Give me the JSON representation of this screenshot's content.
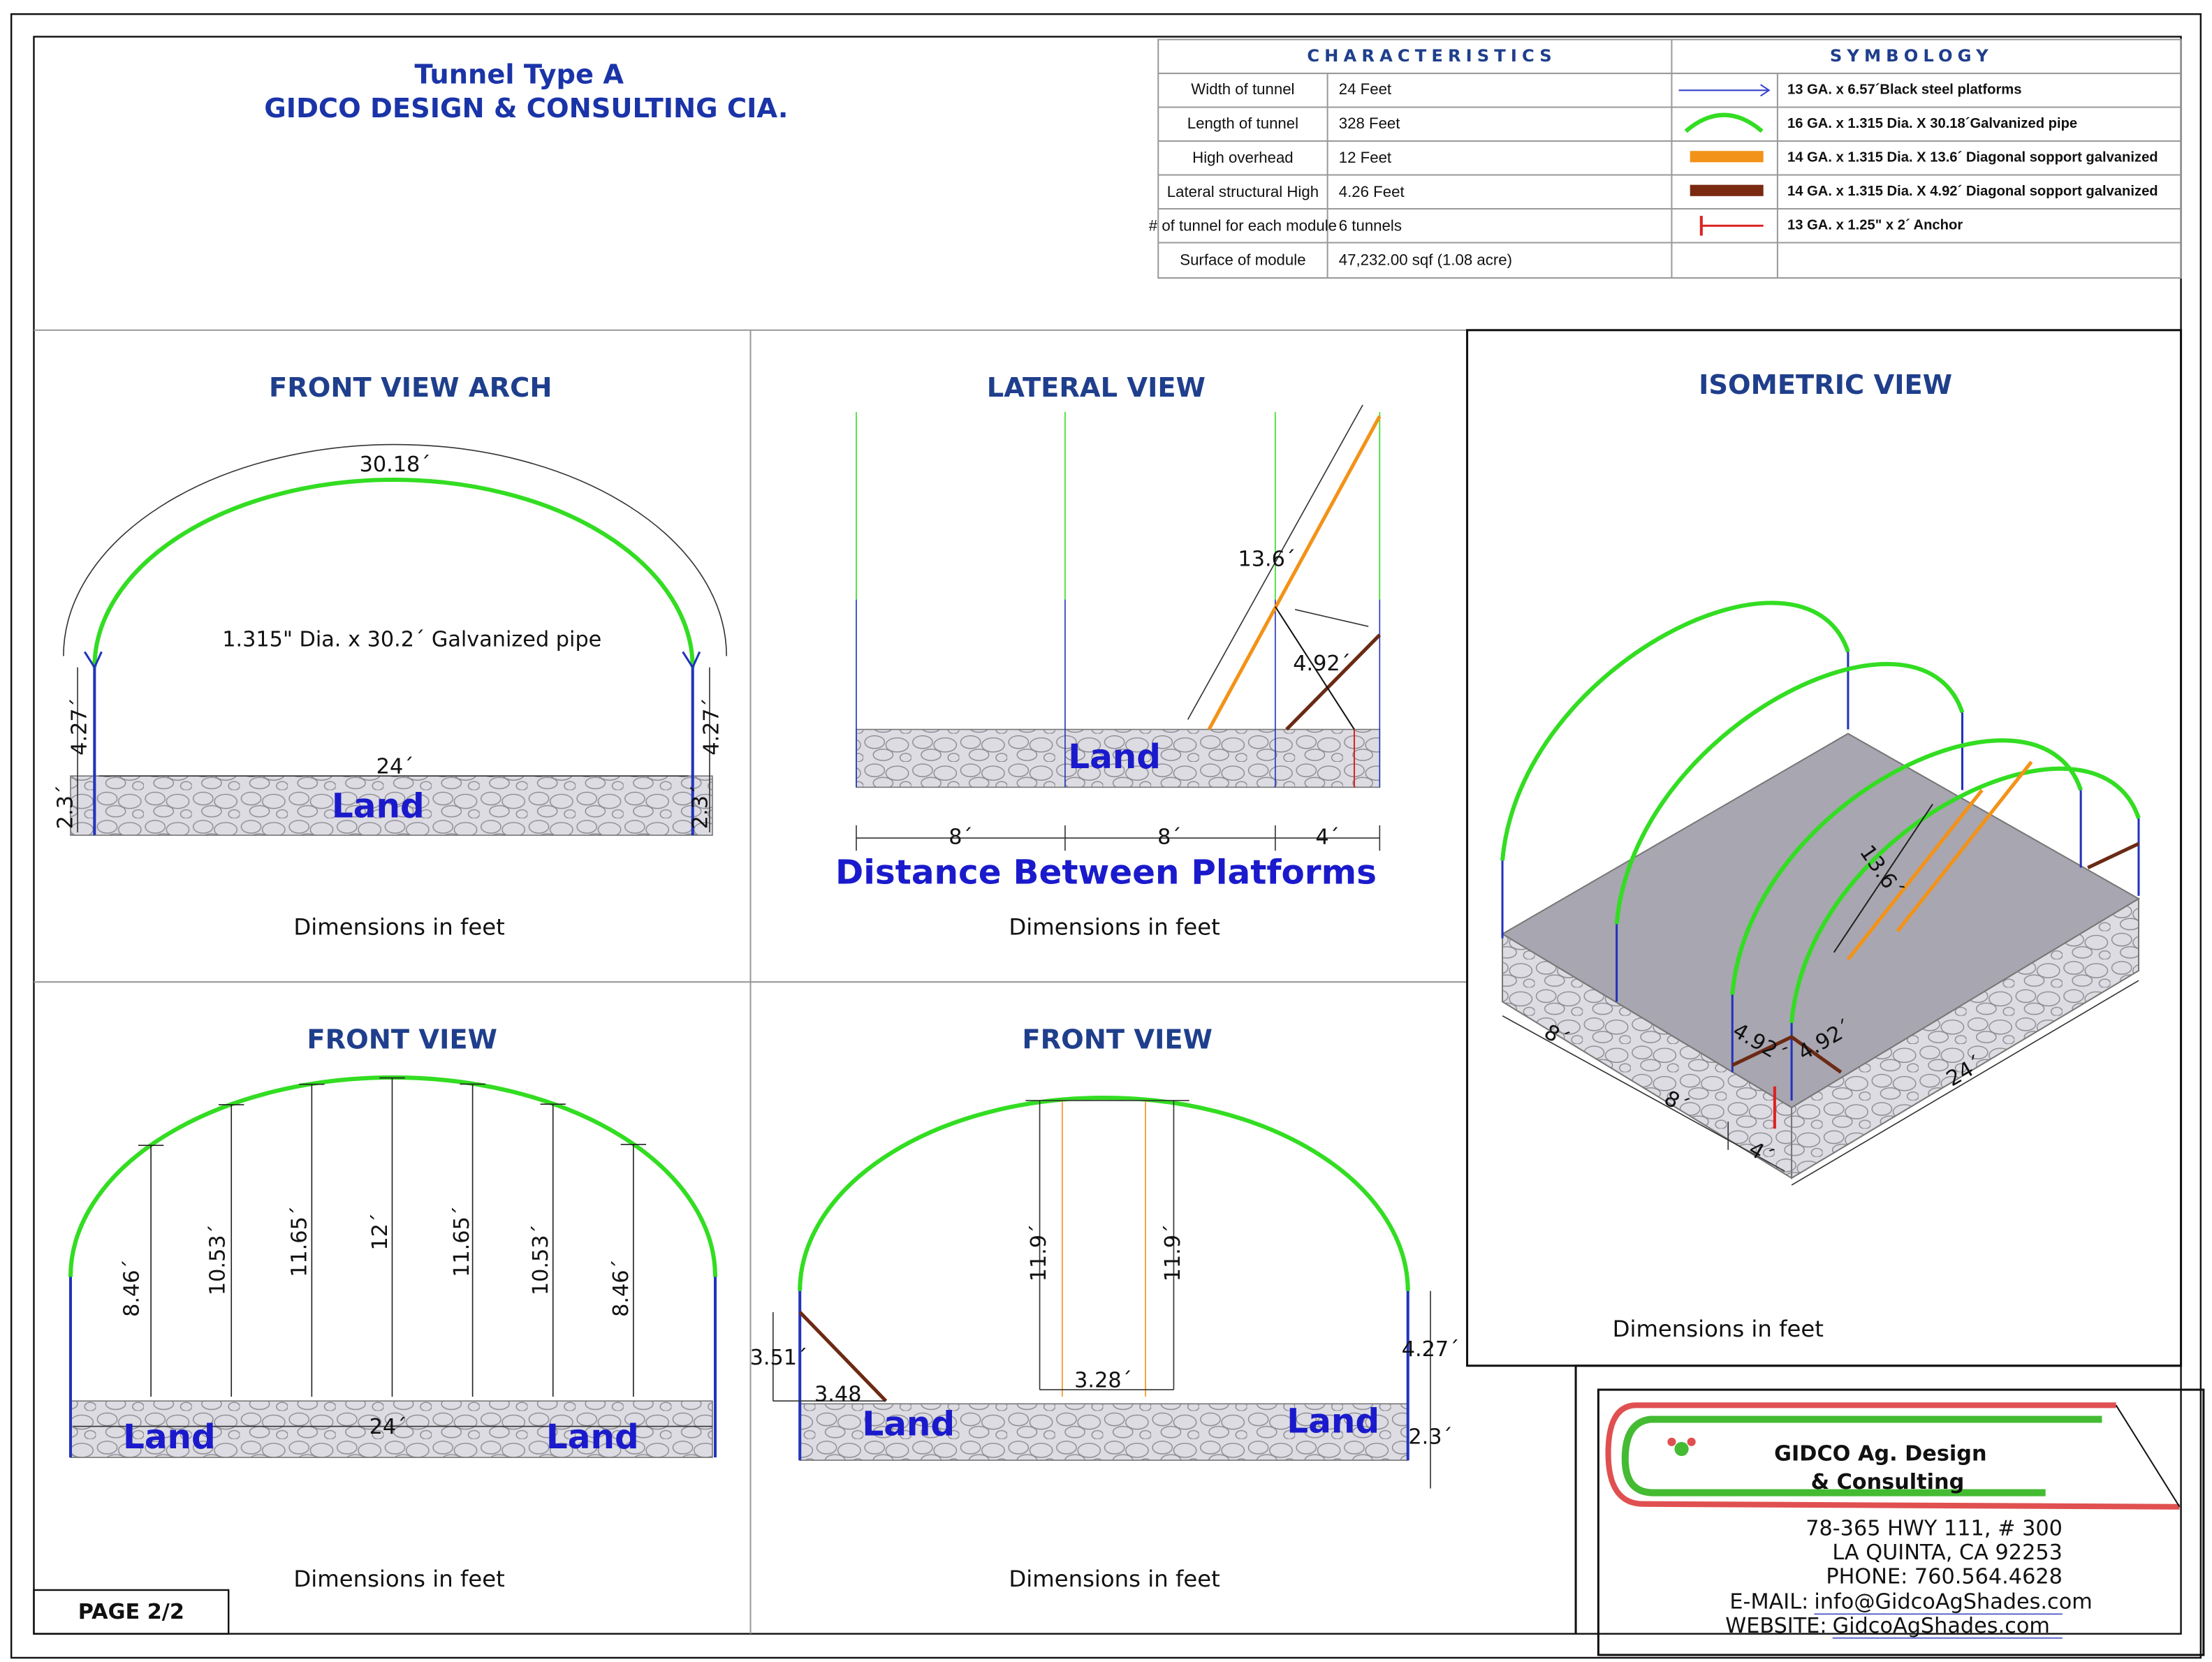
{
  "header": {
    "title": "Tunnel Type A",
    "subtitle": "GIDCO DESIGN & CONSULTING CIA."
  },
  "characteristics": {
    "title": "CHARACTERISTICS",
    "rows": [
      [
        "Width of tunnel",
        "24 Feet"
      ],
      [
        "Length of tunnel",
        "328 Feet"
      ],
      [
        "High overhead",
        "12 Feet"
      ],
      [
        "Lateral structural High",
        "4.26 Feet"
      ],
      [
        "# of tunnel for each module",
        "6 tunnels"
      ],
      [
        "Surface of module",
        "47,232.00 sqf  (1.08 acre)"
      ]
    ]
  },
  "symbology": {
    "title": "SYMBOLOGY",
    "items": [
      "13 GA. x 6.57´Black steel platforms",
      "16 GA. x 1.315 Dia. X 30.18´Galvanized pipe",
      "14 GA. x 1.315 Dia. X 13.6´ Diagonal sopport galvanized",
      "14 GA. x 1.315 Dia. X 4.92´ Diagonal sopport galvanized",
      "13 GA. x 1.25\" x 2´ Anchor"
    ]
  },
  "panels": [
    {
      "title": "FRONT VIEW ARCH",
      "labels": [
        "30.18´",
        "1.315\" Dia. x 30.2´ Galvanized pipe",
        "24´",
        "4.27´",
        "4.27´",
        "2.3´",
        "2.3´",
        "Land"
      ],
      "note": "Dimensions in feet"
    },
    {
      "title": "LATERAL VIEW",
      "labels": [
        "13.6´",
        "4.92´",
        "Land",
        "8´",
        "8´",
        "4´",
        "Distance Between Platforms"
      ],
      "note": "Dimensions in feet"
    },
    {
      "title": "ISOMETRIC VIEW",
      "labels": [
        "13.6´",
        "4.92´",
        "4.92´",
        "8´",
        "8´",
        "4´",
        "24´"
      ],
      "note": "Dimensions in feet"
    },
    {
      "title": "FRONT VIEW",
      "labels": [
        "8.46´",
        "10.53´",
        "11.65´",
        "12´",
        "11.65´",
        "10.53´",
        "8.46´",
        "24´",
        "Land",
        "Land"
      ],
      "note": "Dimensions in feet"
    },
    {
      "title": "FRONT VIEW",
      "labels": [
        "11.9´",
        "11.9´",
        "3.51´",
        "3.48",
        "3.28´",
        "Land",
        "Land",
        "4.27´",
        "2.3´"
      ],
      "note": "Dimensions in feet"
    }
  ],
  "page": "PAGE 2/2",
  "logo": {
    "name": "GIDCO Ag. Design",
    "name2": "& Consulting",
    "address": [
      "78-365 HWY 111, # 300",
      "LA QUINTA, CA 92253",
      "PHONE: 760.564.4628"
    ],
    "email_label": "E-MAIL:",
    "email": "info@GidcoAgShades.com",
    "website_label": "WEBSITE:",
    "website": "GidcoAgShades.com"
  }
}
